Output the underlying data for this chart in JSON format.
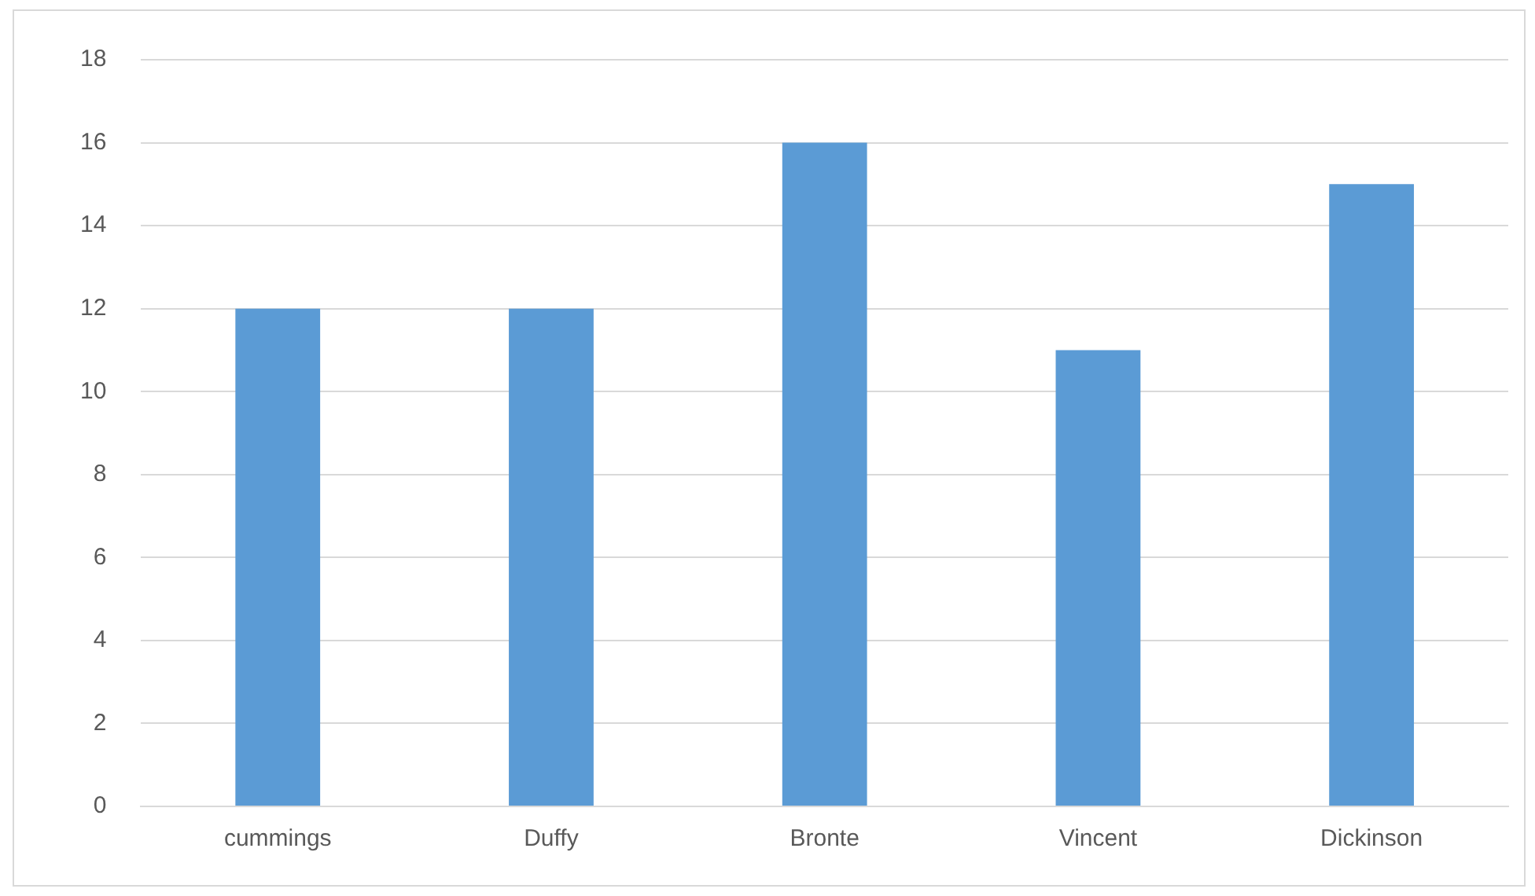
{
  "chart_data": {
    "type": "bar",
    "categories": [
      "cummings",
      "Duffy",
      "Bronte",
      "Vincent",
      "Dickinson"
    ],
    "values": [
      12,
      12,
      16,
      11,
      15
    ],
    "color": "#5b9bd5",
    "ylim": [
      0,
      18
    ],
    "yticks": [
      0,
      2,
      4,
      6,
      8,
      10,
      12,
      14,
      16,
      18
    ],
    "grid": "y",
    "legend": false
  }
}
